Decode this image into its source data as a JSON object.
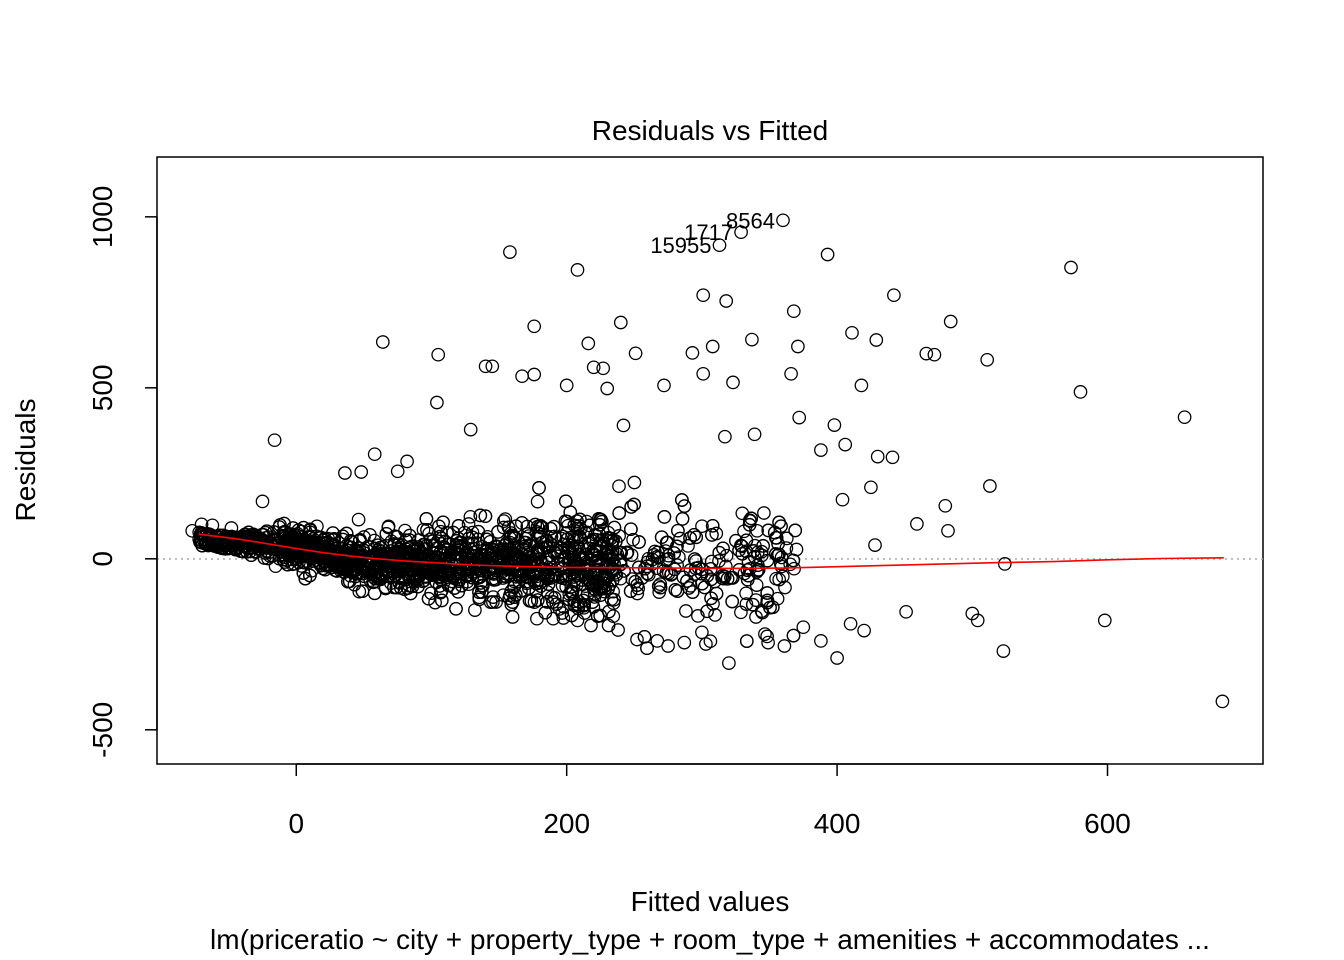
{
  "chart_data": {
    "type": "scatter",
    "title": "Residuals vs Fitted",
    "xlabel": "Fitted values",
    "ylabel": "Residuals",
    "subtitle": "lm(priceratio ~ city + property_type + room_type + amenities + accommodates ...",
    "xlim": [
      -103,
      715
    ],
    "ylim": [
      -600,
      1175
    ],
    "xticks": [
      "0",
      "200",
      "400",
      "600"
    ],
    "yticks": [
      "-500",
      "0",
      "500",
      "1000"
    ],
    "zero_line": true,
    "smoother_color": "#ff0000",
    "point_color": "#000000",
    "labeled_points": [
      {
        "label": "8564",
        "x": 360,
        "y": 990
      },
      {
        "label": "1717",
        "x": 329,
        "y": 955
      },
      {
        "label": "15955",
        "x": 313,
        "y": 917
      }
    ],
    "outlier_points": [
      [
        158,
        897
      ],
      [
        208,
        845
      ],
      [
        393,
        890
      ],
      [
        573,
        852
      ],
      [
        301,
        771
      ],
      [
        318,
        754
      ],
      [
        442,
        771
      ],
      [
        368,
        724
      ],
      [
        176,
        680
      ],
      [
        240,
        691
      ],
      [
        484,
        694
      ],
      [
        411,
        661
      ],
      [
        429,
        640
      ],
      [
        337,
        641
      ],
      [
        64,
        634
      ],
      [
        216,
        630
      ],
      [
        308,
        621
      ],
      [
        371,
        621
      ],
      [
        466,
        600
      ],
      [
        472,
        597
      ],
      [
        105,
        597
      ],
      [
        251,
        601
      ],
      [
        293,
        602
      ],
      [
        511,
        582
      ],
      [
        140,
        563
      ],
      [
        145,
        563
      ],
      [
        167,
        534
      ],
      [
        176,
        539
      ],
      [
        220,
        560
      ],
      [
        227,
        557
      ],
      [
        301,
        541
      ],
      [
        366,
        541
      ],
      [
        580,
        488
      ],
      [
        418,
        507
      ],
      [
        323,
        516
      ],
      [
        200,
        507
      ],
      [
        230,
        498
      ],
      [
        272,
        507
      ],
      [
        104,
        457
      ],
      [
        129,
        378
      ],
      [
        242,
        390
      ],
      [
        657,
        414
      ],
      [
        -16,
        347
      ],
      [
        398,
        391
      ],
      [
        372,
        413
      ],
      [
        406,
        334
      ],
      [
        317,
        357
      ],
      [
        339,
        364
      ],
      [
        388,
        318
      ],
      [
        430,
        299
      ],
      [
        441,
        297
      ],
      [
        48,
        254
      ],
      [
        36,
        251
      ],
      [
        58,
        306
      ],
      [
        82,
        285
      ],
      [
        75,
        256
      ],
      [
        513,
        213
      ],
      [
        425,
        209
      ],
      [
        404,
        173
      ],
      [
        459,
        102
      ],
      [
        480,
        155
      ],
      [
        482,
        82
      ],
      [
        428,
        40
      ],
      [
        -77,
        82
      ],
      [
        -70,
        101
      ],
      [
        -62,
        98
      ],
      [
        -48,
        90
      ],
      [
        -25,
        168
      ],
      [
        -12,
        99
      ],
      [
        524,
        -15
      ],
      [
        500,
        -160
      ],
      [
        504,
        -180
      ],
      [
        451,
        -155
      ],
      [
        523,
        -270
      ],
      [
        598,
        -180
      ],
      [
        685,
        -417
      ],
      [
        320,
        -305
      ],
      [
        400,
        -290
      ],
      [
        388,
        -240
      ],
      [
        410,
        -190
      ],
      [
        420,
        -210
      ],
      [
        361,
        -255
      ],
      [
        375,
        -200
      ],
      [
        349,
        -245
      ],
      [
        340,
        -170
      ],
      [
        300,
        -215
      ],
      [
        287,
        -245
      ],
      [
        267,
        -240
      ],
      [
        252,
        -236
      ],
      [
        275,
        -255
      ],
      [
        231,
        -195
      ],
      [
        218,
        -195
      ],
      [
        208,
        -180
      ],
      [
        190,
        -175
      ],
      [
        178,
        -175
      ],
      [
        160,
        -170
      ]
    ],
    "smoother": [
      [
        -72,
        72
      ],
      [
        -55,
        64
      ],
      [
        -40,
        56
      ],
      [
        -20,
        43
      ],
      [
        0,
        30
      ],
      [
        20,
        18
      ],
      [
        40,
        8
      ],
      [
        60,
        0
      ],
      [
        80,
        -6
      ],
      [
        100,
        -11
      ],
      [
        130,
        -18
      ],
      [
        160,
        -22
      ],
      [
        200,
        -25
      ],
      [
        240,
        -26
      ],
      [
        280,
        -27
      ],
      [
        320,
        -28
      ],
      [
        360,
        -27
      ],
      [
        400,
        -23
      ],
      [
        440,
        -19
      ],
      [
        480,
        -15
      ],
      [
        520,
        -11
      ],
      [
        560,
        -8
      ],
      [
        600,
        -3
      ],
      [
        640,
        1
      ],
      [
        686,
        3
      ]
    ],
    "cloud_density": [
      {
        "x": [
          -72,
          -60
        ],
        "lo": [
          60,
          85
        ],
        "hi": [
          70,
          100
        ]
      },
      {
        "x": [
          -60,
          -40
        ],
        "lo": [
          40,
          70
        ],
        "hi": [
          55,
          95
        ]
      }
    ]
  }
}
